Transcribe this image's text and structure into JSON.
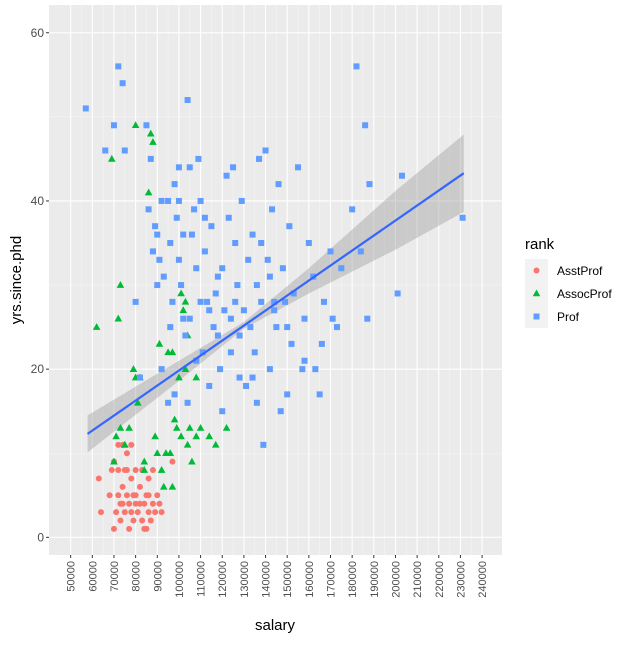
{
  "chart_data": {
    "type": "scatter",
    "title": "",
    "xlabel": "salary",
    "ylabel": "yrs.since.phd",
    "xlim": [
      40000,
      249200
    ],
    "ylim": [
      -2.1,
      63.3
    ],
    "x_ticks": [
      "50000",
      "60000",
      "70000",
      "80000",
      "90000",
      "100000",
      "110000",
      "120000",
      "130000",
      "140000",
      "150000",
      "160000",
      "170000",
      "180000",
      "190000",
      "200000",
      "210000",
      "220000",
      "230000",
      "240000"
    ],
    "y_ticks": [
      "0",
      "20",
      "40",
      "60"
    ],
    "grid": true,
    "legend": {
      "title": "rank",
      "position": "right"
    },
    "series": [
      {
        "name": "AsstProf",
        "color": "#F8766D",
        "shape": "circle",
        "points": [
          [
            63000,
            7
          ],
          [
            64000,
            3
          ],
          [
            68000,
            5
          ],
          [
            69000,
            8
          ],
          [
            70000,
            1
          ],
          [
            71000,
            3
          ],
          [
            72000,
            5
          ],
          [
            72000,
            8
          ],
          [
            73000,
            2
          ],
          [
            73000,
            4
          ],
          [
            74000,
            6
          ],
          [
            74000,
            11
          ],
          [
            75000,
            3
          ],
          [
            75000,
            8
          ],
          [
            76000,
            5
          ],
          [
            76000,
            10
          ],
          [
            77000,
            1
          ],
          [
            77000,
            4
          ],
          [
            78000,
            7
          ],
          [
            78000,
            11
          ],
          [
            79000,
            2
          ],
          [
            79000,
            5
          ],
          [
            80000,
            4
          ],
          [
            80000,
            8
          ],
          [
            81000,
            3
          ],
          [
            82000,
            6
          ],
          [
            83000,
            2
          ],
          [
            83000,
            8
          ],
          [
            84000,
            4
          ],
          [
            85000,
            1
          ],
          [
            85000,
            5
          ],
          [
            86000,
            7
          ],
          [
            86000,
            3
          ],
          [
            87000,
            2
          ],
          [
            88000,
            4
          ],
          [
            88000,
            8
          ],
          [
            89000,
            3
          ],
          [
            90000,
            5
          ],
          [
            91000,
            4
          ],
          [
            92000,
            3
          ],
          [
            97000,
            9
          ],
          [
            70000,
            9
          ],
          [
            72000,
            11
          ],
          [
            76000,
            8
          ],
          [
            80000,
            5
          ],
          [
            82000,
            4
          ],
          [
            86000,
            5
          ],
          [
            74000,
            4
          ],
          [
            78000,
            3
          ],
          [
            84000,
            1
          ]
        ]
      },
      {
        "name": "AssocProf",
        "color": "#00BA38",
        "shape": "triangle",
        "points": [
          [
            62000,
            25
          ],
          [
            69000,
            45
          ],
          [
            72000,
            26
          ],
          [
            73000,
            30
          ],
          [
            70000,
            9
          ],
          [
            71000,
            12
          ],
          [
            73000,
            13
          ],
          [
            75000,
            11
          ],
          [
            77000,
            13
          ],
          [
            79000,
            20
          ],
          [
            80000,
            49
          ],
          [
            80000,
            19
          ],
          [
            81000,
            16
          ],
          [
            82000,
            19
          ],
          [
            84000,
            8
          ],
          [
            86000,
            41
          ],
          [
            87000,
            48
          ],
          [
            88000,
            47
          ],
          [
            89000,
            12
          ],
          [
            91000,
            23
          ],
          [
            92000,
            8
          ],
          [
            93000,
            6
          ],
          [
            94000,
            10
          ],
          [
            95000,
            22
          ],
          [
            96000,
            10
          ],
          [
            97000,
            22
          ],
          [
            98000,
            14
          ],
          [
            99000,
            13
          ],
          [
            100000,
            19
          ],
          [
            101000,
            12
          ],
          [
            101000,
            29
          ],
          [
            102000,
            27
          ],
          [
            103000,
            28
          ],
          [
            104000,
            24
          ],
          [
            104000,
            11
          ],
          [
            105000,
            13
          ],
          [
            106000,
            9
          ],
          [
            108000,
            19
          ],
          [
            110000,
            13
          ],
          [
            114000,
            12
          ],
          [
            117000,
            11
          ],
          [
            122000,
            13
          ],
          [
            90000,
            10
          ],
          [
            97000,
            6
          ],
          [
            103000,
            20
          ],
          [
            108000,
            12
          ],
          [
            75000,
            11
          ],
          [
            84000,
            9
          ]
        ]
      },
      {
        "name": "Prof",
        "color": "#619CFF",
        "shape": "square",
        "points": [
          [
            57000,
            51
          ],
          [
            66000,
            46
          ],
          [
            70000,
            49
          ],
          [
            72000,
            56
          ],
          [
            74000,
            54
          ],
          [
            75000,
            46
          ],
          [
            80000,
            28
          ],
          [
            82000,
            19
          ],
          [
            85000,
            49
          ],
          [
            86000,
            39
          ],
          [
            87000,
            45
          ],
          [
            88000,
            34
          ],
          [
            89000,
            37
          ],
          [
            90000,
            36
          ],
          [
            90000,
            30
          ],
          [
            91000,
            33
          ],
          [
            92000,
            40
          ],
          [
            93000,
            31
          ],
          [
            95000,
            40
          ],
          [
            96000,
            35
          ],
          [
            97000,
            28
          ],
          [
            98000,
            42
          ],
          [
            99000,
            38
          ],
          [
            100000,
            40
          ],
          [
            100000,
            33
          ],
          [
            101000,
            30
          ],
          [
            102000,
            26
          ],
          [
            103000,
            24
          ],
          [
            104000,
            52
          ],
          [
            105000,
            44
          ],
          [
            106000,
            36
          ],
          [
            107000,
            39
          ],
          [
            108000,
            21
          ],
          [
            109000,
            45
          ],
          [
            110000,
            28
          ],
          [
            110000,
            40
          ],
          [
            111000,
            22
          ],
          [
            112000,
            34
          ],
          [
            113000,
            28
          ],
          [
            114000,
            18
          ],
          [
            115000,
            37
          ],
          [
            116000,
            25
          ],
          [
            117000,
            29
          ],
          [
            118000,
            31
          ],
          [
            119000,
            20
          ],
          [
            120000,
            32
          ],
          [
            121000,
            27
          ],
          [
            122000,
            43
          ],
          [
            123000,
            38
          ],
          [
            124000,
            22
          ],
          [
            125000,
            44
          ],
          [
            126000,
            35
          ],
          [
            127000,
            30
          ],
          [
            128000,
            24
          ],
          [
            129000,
            40
          ],
          [
            130000,
            27
          ],
          [
            131000,
            18
          ],
          [
            132000,
            33
          ],
          [
            133000,
            25
          ],
          [
            134000,
            36
          ],
          [
            135000,
            22
          ],
          [
            136000,
            30
          ],
          [
            137000,
            45
          ],
          [
            138000,
            28
          ],
          [
            139000,
            11
          ],
          [
            140000,
            46
          ],
          [
            141000,
            33
          ],
          [
            142000,
            20
          ],
          [
            143000,
            39
          ],
          [
            144000,
            28
          ],
          [
            145000,
            25
          ],
          [
            146000,
            42
          ],
          [
            147000,
            15
          ],
          [
            148000,
            32
          ],
          [
            149000,
            28
          ],
          [
            150000,
            17
          ],
          [
            151000,
            37
          ],
          [
            152000,
            23
          ],
          [
            153000,
            29
          ],
          [
            155000,
            44
          ],
          [
            157000,
            20
          ],
          [
            158000,
            26
          ],
          [
            160000,
            35
          ],
          [
            162000,
            31
          ],
          [
            163000,
            20
          ],
          [
            165000,
            17
          ],
          [
            167000,
            28
          ],
          [
            170000,
            34
          ],
          [
            171000,
            26
          ],
          [
            173000,
            25
          ],
          [
            175000,
            32
          ],
          [
            180000,
            39
          ],
          [
            182000,
            56
          ],
          [
            184000,
            34
          ],
          [
            186000,
            49
          ],
          [
            187000,
            26
          ],
          [
            188000,
            42
          ],
          [
            201000,
            29
          ],
          [
            203000,
            43
          ],
          [
            231000,
            38
          ],
          [
            138000,
            35
          ],
          [
            124000,
            26
          ],
          [
            114000,
            27
          ],
          [
            108000,
            32
          ],
          [
            102000,
            36
          ],
          [
            96000,
            25
          ],
          [
            92000,
            20
          ],
          [
            98000,
            17
          ],
          [
            105000,
            26
          ],
          [
            112000,
            38
          ],
          [
            118000,
            24
          ],
          [
            126000,
            28
          ],
          [
            134000,
            19
          ],
          [
            142000,
            31
          ],
          [
            150000,
            25
          ],
          [
            158000,
            21
          ],
          [
            166000,
            23
          ],
          [
            120000,
            15
          ],
          [
            128000,
            19
          ],
          [
            136000,
            16
          ],
          [
            144000,
            27
          ],
          [
            104000,
            16
          ],
          [
            100000,
            44
          ],
          [
            95000,
            16
          ]
        ]
      }
    ],
    "fit": {
      "method": "lm",
      "color": "#3366FF",
      "line": [
        [
          57800,
          12.3
        ],
        [
          231545,
          43.3
        ]
      ],
      "band": [
        [
          57800,
          10.1,
          14.5
        ],
        [
          100000,
          18.6,
          21.0
        ],
        [
          130000,
          24.8,
          25.6
        ],
        [
          160000,
          29.0,
          32.0
        ],
        [
          200000,
          34.2,
          41.2
        ],
        [
          231545,
          38.7,
          47.9
        ]
      ]
    }
  }
}
